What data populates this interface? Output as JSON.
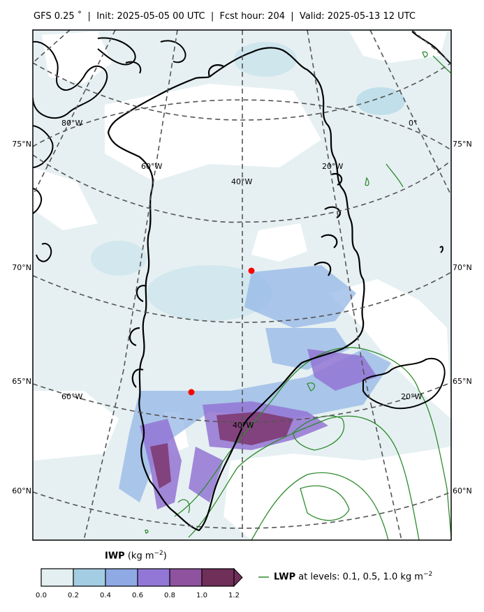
{
  "header": {
    "title": "GFS 0.25$^\\circ$  |  Init: 2025-05-05 00 UTC  |  Fcst hour: 204  |  Valid: 2025-05-13 12 UTC",
    "title_display": "GFS 0.25 ˚  |  Init: 2025-05-05 00 UTC  |  Fcst hour: 204  |  Valid: 2025-05-13 12 UTC"
  },
  "map": {
    "projection": "polar stereographic",
    "lat_labels_left": [
      "75°N",
      "70°N",
      "65°N",
      "60°N"
    ],
    "lat_labels_right": [
      "75°N",
      "70°N",
      "65°N",
      "60°N"
    ],
    "lon_labels": [
      "80°W",
      "60°W",
      "40°W",
      "20°W",
      "0°",
      "60°W",
      "40°W",
      "20°W"
    ],
    "markers": [
      {
        "name": "summit-station",
        "color": "#ff0000"
      },
      {
        "name": "nuuk-area-station",
        "color": "#ff0000"
      }
    ]
  },
  "colorbar": {
    "variable": "IWP",
    "unit": "(kg m",
    "unit_exp": "−2",
    "unit_close": ")",
    "ticks": [
      "0.0",
      "0.2",
      "0.4",
      "0.6",
      "0.8",
      "1.0",
      "1.2"
    ],
    "colors": [
      "#e4eff1",
      "#a3cde3",
      "#8ea9e3",
      "#9277d6",
      "#8f529e",
      "#6f2f58"
    ]
  },
  "legend": {
    "label_bold": "LWP",
    "label_text": " at levels: 0.1, 0.5, 1.0  kg m",
    "label_exp": "−2",
    "line_color": "#2e8b2e"
  }
}
